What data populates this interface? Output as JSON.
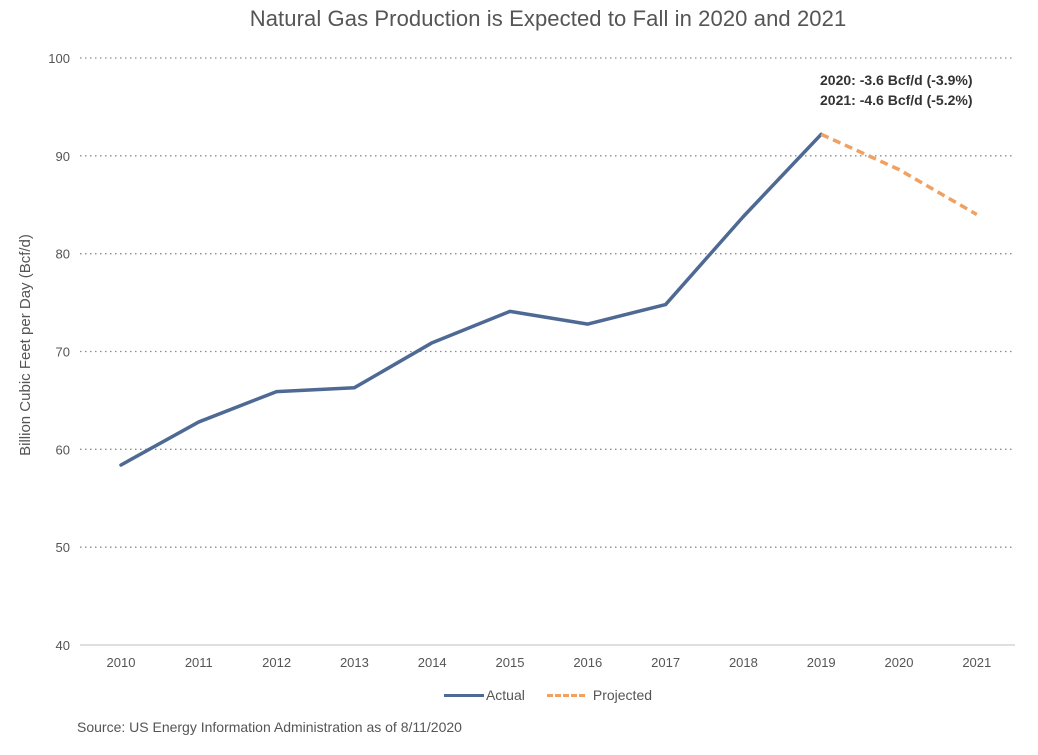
{
  "chart_data": {
    "type": "line",
    "title": "Natural Gas Production is Expected to Fall in 2020 and 2021",
    "xlabel": "",
    "ylabel": "Billion Cubic Feet per Day (Bcf/d)",
    "ylim": [
      40,
      100
    ],
    "yticks": [
      40,
      50,
      60,
      70,
      80,
      90,
      100
    ],
    "categories": [
      "2010",
      "2011",
      "2012",
      "2013",
      "2014",
      "2015",
      "2016",
      "2017",
      "2018",
      "2019",
      "2020",
      "2021"
    ],
    "grid": true,
    "legend_position": "bottom",
    "series": [
      {
        "name": "Actual",
        "style": "solid",
        "color": "#4e6a94",
        "x": [
          "2010",
          "2011",
          "2012",
          "2013",
          "2014",
          "2015",
          "2016",
          "2017",
          "2018",
          "2019"
        ],
        "values": [
          58.4,
          62.8,
          65.9,
          66.3,
          70.9,
          74.1,
          72.8,
          74.8,
          83.8,
          92.2
        ]
      },
      {
        "name": "Projected",
        "style": "dashed",
        "color": "#f0a060",
        "x": [
          "2019",
          "2020",
          "2021"
        ],
        "values": [
          92.2,
          88.6,
          84.0
        ]
      }
    ],
    "annotations": [
      "2020: -3.6 Bcf/d (-3.9%)",
      "2021: -4.6 Bcf/d (-5.2%)"
    ],
    "source": "Source: US Energy Information Administration as of 8/11/2020"
  }
}
